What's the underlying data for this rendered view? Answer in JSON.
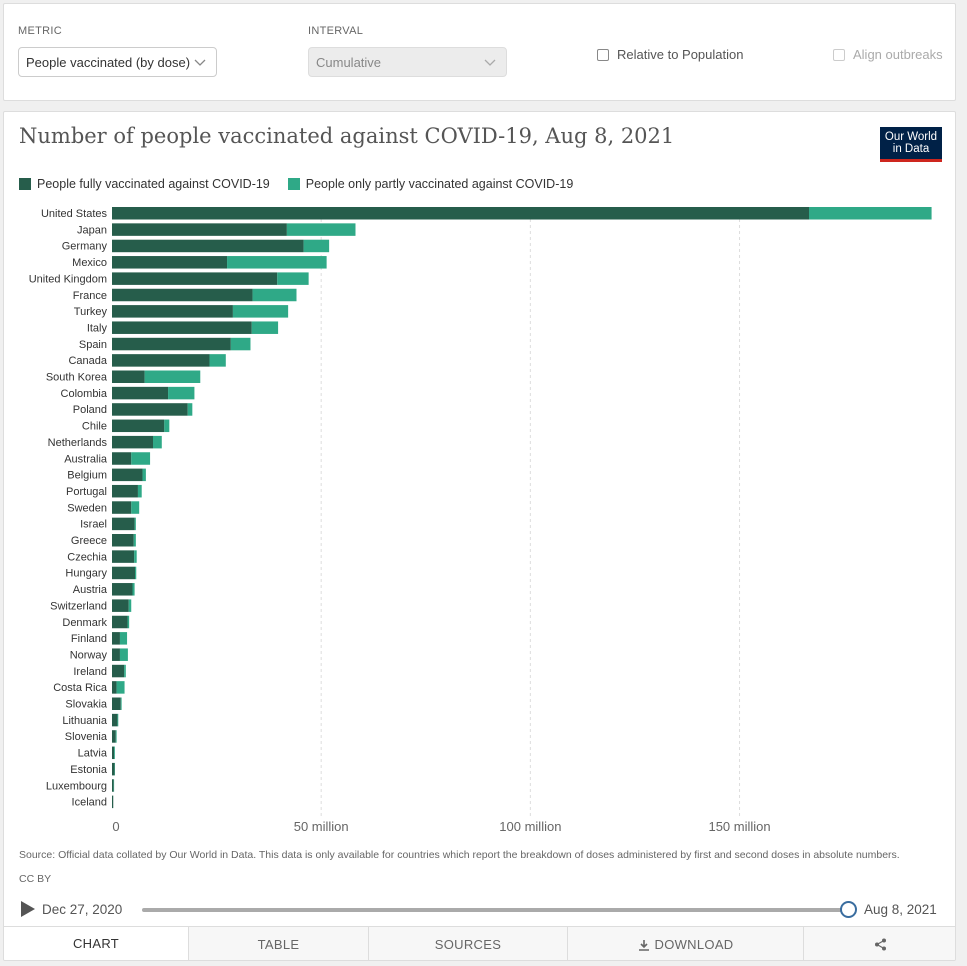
{
  "controls": {
    "metric_label": "METRIC",
    "metric_value": "People vaccinated (by dose)",
    "interval_label": "INTERVAL",
    "interval_value": "Cumulative",
    "relative_label": "Relative to Population",
    "align_label": "Align outbreaks"
  },
  "logo_line1": "Our World",
  "logo_line2": "in Data",
  "source_text": "Source: Official data collated by Our World in Data. This data is only available for countries which report the breakdown of doses administered by first and second doses in absolute numbers.",
  "license": "CC BY",
  "timeline": {
    "start": "Dec 27, 2020",
    "end": "Aug 8, 2021"
  },
  "tabs": [
    "CHART",
    "TABLE",
    "SOURCES",
    "DOWNLOAD",
    ""
  ],
  "colors": {
    "fully": "#265d4b",
    "partly": "#2fa987",
    "grid": "#dddddd"
  },
  "chart_data": {
    "type": "bar",
    "orientation": "horizontal",
    "stacked": true,
    "title": "Number of people vaccinated against COVID-19, Aug 8, 2021",
    "categories": [
      "United States",
      "Japan",
      "Germany",
      "Mexico",
      "United Kingdom",
      "France",
      "Turkey",
      "Italy",
      "Spain",
      "Canada",
      "South Korea",
      "Colombia",
      "Poland",
      "Chile",
      "Netherlands",
      "Australia",
      "Belgium",
      "Portugal",
      "Sweden",
      "Israel",
      "Greece",
      "Czechia",
      "Hungary",
      "Austria",
      "Switzerland",
      "Denmark",
      "Finland",
      "Norway",
      "Ireland",
      "Costa Rica",
      "Slovakia",
      "Lithuania",
      "Slovenia",
      "Latvia",
      "Estonia",
      "Luxembourg",
      "Iceland"
    ],
    "series": [
      {
        "name": "People fully vaccinated against COVID-19",
        "values": [
          166.6,
          41.8,
          45.8,
          27.5,
          39.5,
          33.6,
          28.9,
          33.4,
          28.4,
          23.3,
          7.8,
          13.4,
          18.1,
          12.5,
          9.8,
          4.6,
          7.3,
          6.2,
          4.6,
          5.4,
          5.2,
          5.3,
          5.5,
          4.9,
          4.0,
          3.7,
          1.9,
          1.9,
          2.9,
          1.1,
          2.1,
          1.3,
          0.9,
          0.5,
          0.6,
          0.4,
          0.3
        ]
      },
      {
        "name": "People only partly vaccinated against COVID-19",
        "values": [
          29.3,
          16.4,
          6.1,
          23.8,
          7.5,
          10.5,
          13.2,
          6.3,
          4.7,
          3.9,
          13.3,
          6.3,
          1.1,
          1.2,
          2.1,
          4.5,
          0.8,
          0.9,
          1.9,
          0.3,
          0.5,
          0.6,
          0.3,
          0.5,
          0.6,
          0.4,
          1.7,
          1.9,
          0.4,
          1.9,
          0.2,
          0.2,
          0.2,
          0.2,
          0.1,
          0.1,
          0.0
        ]
      }
    ],
    "x_ticks": [
      0,
      50,
      100,
      150
    ],
    "x_tick_labels": [
      "0",
      "50 million",
      "100 million",
      "150 million"
    ],
    "xlim": [
      0,
      196
    ],
    "unit": "million",
    "legend_position": "top-left",
    "grid": "vertical dashed"
  }
}
